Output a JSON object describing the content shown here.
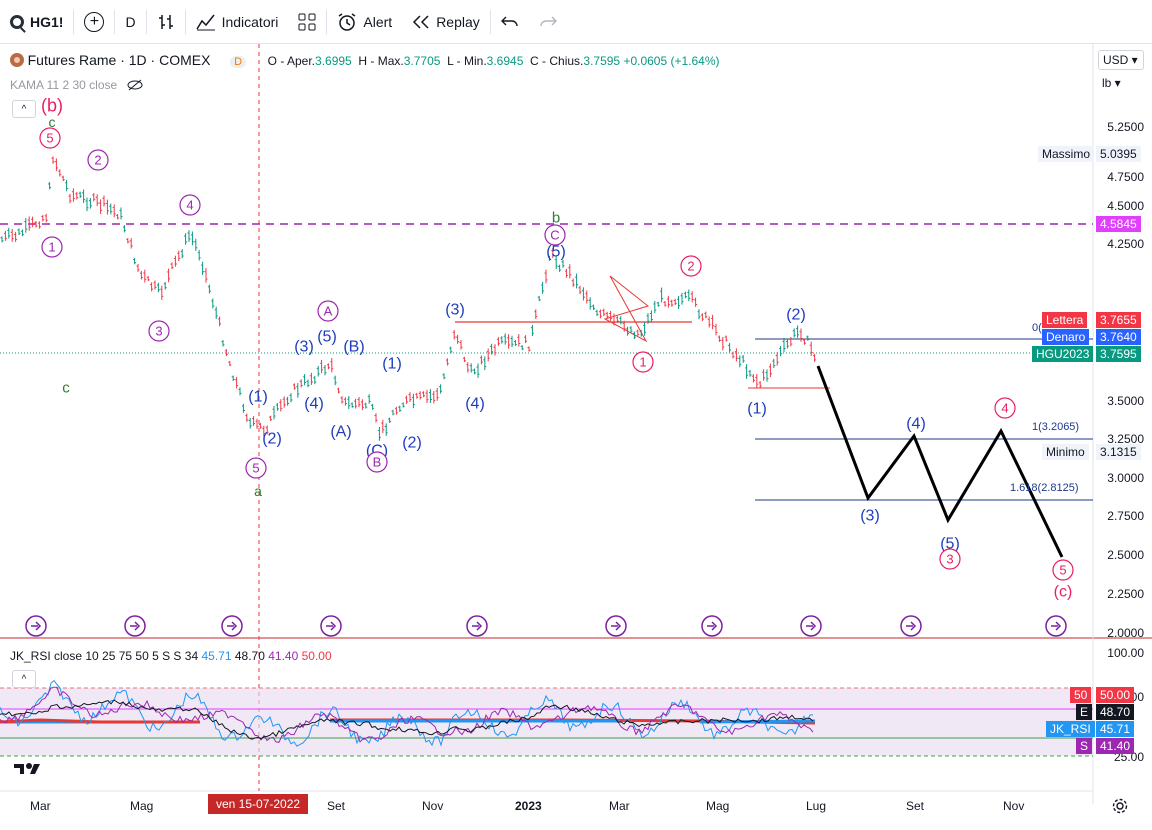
{
  "toolbar": {
    "symbol": "HG1!",
    "interval": "D",
    "indicators_label": "Indicatori",
    "alert_label": "Alert",
    "replay_label": "Replay"
  },
  "legend": {
    "title": "Futures Rame · 1D · COMEX",
    "d_badge": "D",
    "o_label": "O - Aper.",
    "o_val": "3.6995",
    "h_label": "H - Max.",
    "h_val": "3.7705",
    "l_label": "L - Min.",
    "l_val": "3.6945",
    "c_label": "C - Chius.",
    "c_val": "3.7595",
    "change": "+0.0605 (+1.64%)",
    "kama": "KAMA 11 2 30 close"
  },
  "rsi_legend": {
    "name": "JK_RSI close 10 25 75 50 5 S S 34",
    "v1": "45.71",
    "v2": "48.70",
    "v3": "41.40",
    "v4": "50.00"
  },
  "currency": "USD",
  "unit": "lb",
  "price_axis": [
    "5.2500",
    "4.7500",
    "4.5000",
    "4.2500",
    "3.5000",
    "3.2500",
    "3.0000",
    "2.7500",
    "2.5000",
    "2.2500",
    "2.0000"
  ],
  "price_tags": {
    "massimo_label": "Massimo",
    "massimo_val": "5.0395",
    "level_4584": "4.5845",
    "lettera_label": "Lettera",
    "lettera_val": "3.7655",
    "denaro_label": "Denaro",
    "denaro_val": "3.7640",
    "hg_label": "HGU2023",
    "hg_val": "3.7595",
    "minimo_label": "Minimo",
    "minimo_val": "3.1315",
    "fib1": "1(3.2065)",
    "fib1618": "1.618(2.8125)",
    "fib0": "0("
  },
  "rsi_axis": [
    "100.00",
    "75.00",
    "25.00"
  ],
  "rsi_tags": {
    "t50_label": "50",
    "t50_val": "50.00",
    "e_label": "E",
    "e_val": "48.70",
    "jk_label": "JK_RSI",
    "jk_val": "45.71",
    "s_label": "S",
    "s_val": "41.40"
  },
  "time_axis": [
    "Mar",
    "Mag",
    "Set",
    "Nov",
    "2023",
    "Mar",
    "Mag",
    "Lug",
    "Set",
    "Nov"
  ],
  "time_cursor": "ven 15-07-2022",
  "waves": [
    "(b)",
    "c",
    "5",
    "2",
    "4",
    "1",
    "3",
    "5",
    "a",
    "(1)",
    "(2)",
    "(3)",
    "(4)",
    "(5)",
    "A",
    "(A)",
    "(B)",
    "(C)",
    "B",
    "(1)",
    "(2)",
    "(3)",
    "(4)",
    "(5)",
    "C",
    "b",
    "2",
    "1",
    "(2)",
    "(1)",
    "(3)",
    "(4)",
    "(5)",
    "3",
    "4",
    "5",
    "(c)",
    "c"
  ],
  "colors": {
    "up": "#089981",
    "down": "#f23645",
    "wave_purple": "#9c27b0",
    "wave_blue": "#1e3dbd",
    "wave_red": "#e91e63",
    "wave_green": "#2e7d32"
  }
}
